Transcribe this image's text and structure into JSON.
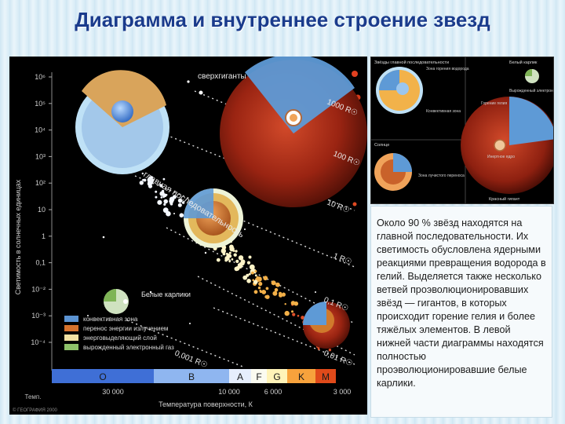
{
  "title": "Диаграмма и внутреннее строение звезд",
  "caption": "Около 90 % звёзд находятся на главной последовательности. Их светимость обусловлена ядерными реакциями превращения водорода в гелий. Выделяется также несколько ветвей проэволюционировавших звёзд — гигантов, в которых происходит горение гелия и более тяжёлых элементов. В левой нижней части диаграммы находятся полностью проэволюционировавшие белые карлики.",
  "diagram": {
    "y_axis_label": "Светимость в солнечных единицах",
    "x_axis_label": "Температура поверхности, К",
    "y_ticks": [
      "10⁶",
      "10⁵",
      "10⁴",
      "10³",
      "10²",
      "10",
      "1",
      "0,1",
      "10⁻²",
      "10⁻³",
      "10⁻⁴"
    ],
    "x_ticks": [
      "30 000",
      "10 000",
      "6 000",
      "3 000"
    ],
    "temp_caption": "Темп.",
    "spectral_classes": [
      "O",
      "B",
      "A",
      "F",
      "G",
      "K",
      "M"
    ],
    "region_supergiants": "сверхгиганты",
    "region_main_sequence": "главная последовательность",
    "region_white_dwarfs": "Белые карлики",
    "radius_labels": [
      "1000 R☉",
      "100 R☉",
      "10 R☉",
      "1 R☉",
      "0,1 R☉",
      "0,01 R☉",
      "0,001 R☉"
    ],
    "legend": [
      {
        "label": "конвективная зона",
        "color": "#5b93d2"
      },
      {
        "label": "перенос энергии излучением",
        "color": "#d4722d"
      },
      {
        "label": "энерговыделяющий слой",
        "color": "#f3e2a3"
      },
      {
        "label": "вырожденный электронный газ",
        "color": "#8fc26a"
      }
    ],
    "credit": "© ГЕОГРАФИЯ 2000"
  },
  "inset": {
    "sections": [
      "Звёзды главной последовательности",
      "Белый карлик",
      "Солнце",
      "Красный гигант"
    ],
    "notes": [
      "Зона горения водорода",
      "Конвективная зона",
      "Вырожденный электронный газ",
      "Горение гелия",
      "Инертное ядро",
      "Зона лучистого переноса"
    ]
  },
  "colors": {
    "title": "#1a3b8c",
    "diagram_bg": "#000000",
    "convective": "#5b93d2",
    "radiative": "#d4722d",
    "red_giant": "#a82a16"
  }
}
